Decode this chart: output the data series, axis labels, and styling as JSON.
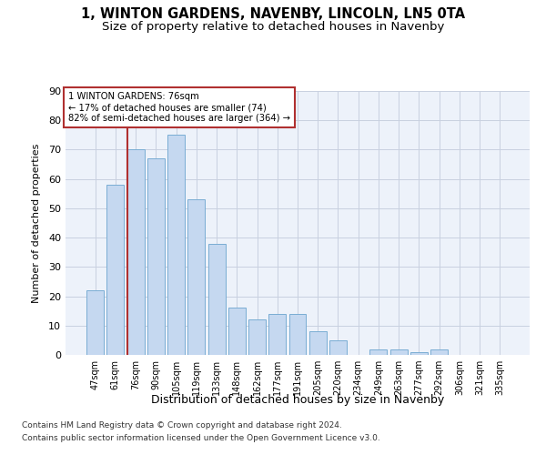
{
  "title": "1, WINTON GARDENS, NAVENBY, LINCOLN, LN5 0TA",
  "subtitle": "Size of property relative to detached houses in Navenby",
  "xlabel": "Distribution of detached houses by size in Navenby",
  "ylabel": "Number of detached properties",
  "categories": [
    "47sqm",
    "61sqm",
    "76sqm",
    "90sqm",
    "105sqm",
    "119sqm",
    "133sqm",
    "148sqm",
    "162sqm",
    "177sqm",
    "191sqm",
    "205sqm",
    "220sqm",
    "234sqm",
    "249sqm",
    "263sqm",
    "277sqm",
    "292sqm",
    "306sqm",
    "321sqm",
    "335sqm"
  ],
  "values": [
    22,
    58,
    70,
    67,
    75,
    53,
    38,
    16,
    12,
    14,
    14,
    8,
    5,
    0,
    2,
    2,
    1,
    2,
    0,
    0,
    0
  ],
  "bar_color": "#c5d8f0",
  "bar_edge_color": "#7aadd4",
  "highlight_index": 2,
  "highlight_color": "#b03030",
  "annotation_title": "1 WINTON GARDENS: 76sqm",
  "annotation_line1": "← 17% of detached houses are smaller (74)",
  "annotation_line2": "82% of semi-detached houses are larger (364) →",
  "annotation_box_color": "#b03030",
  "ylim": [
    0,
    90
  ],
  "yticks": [
    0,
    10,
    20,
    30,
    40,
    50,
    60,
    70,
    80,
    90
  ],
  "bg_color": "#edf2fa",
  "grid_color": "#c8d0e0",
  "footer1": "Contains HM Land Registry data © Crown copyright and database right 2024.",
  "footer2": "Contains public sector information licensed under the Open Government Licence v3.0.",
  "title_fontsize": 10.5,
  "subtitle_fontsize": 9.5
}
